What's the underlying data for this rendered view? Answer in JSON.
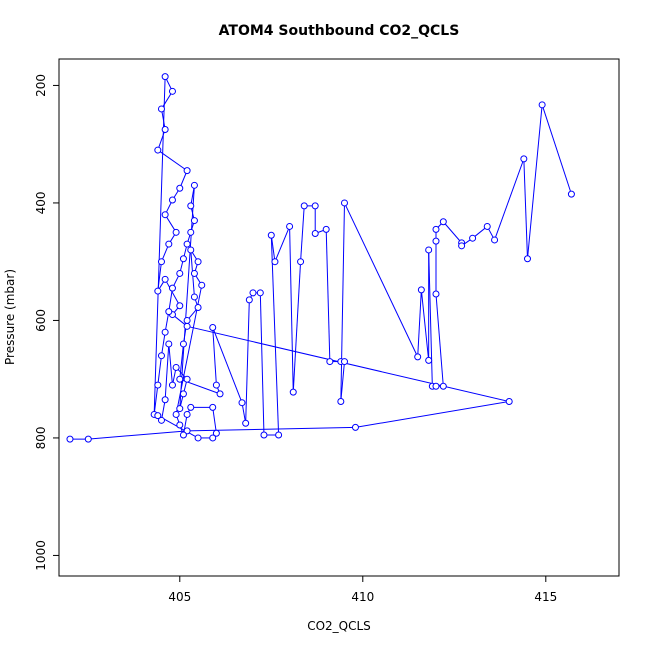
{
  "chart_data": {
    "type": "scatter",
    "title": "ATOM4 Southbound CO2_QCLS",
    "xlabel": "CO2_QCLS",
    "ylabel": "Pressure (mbar)",
    "xlim": [
      401.7,
      417
    ],
    "ylim": [
      1035,
      155
    ],
    "y_reversed": true,
    "x_ticks": [
      405,
      410,
      415
    ],
    "y_ticks": [
      200,
      400,
      600,
      800,
      1000
    ],
    "color": "#0000ff",
    "marker": "open-circle",
    "connected": true,
    "grid": false,
    "legend": "none",
    "series": [
      {
        "points": [
          [
            402.0,
            802
          ],
          [
            402.5,
            802
          ],
          [
            405.2,
            788
          ],
          [
            409.8,
            782
          ],
          [
            414.0,
            738
          ],
          [
            405.2,
            610
          ],
          [
            404.8,
            590
          ],
          [
            405.0,
            575
          ],
          [
            404.6,
            530
          ],
          [
            404.4,
            550
          ],
          [
            404.5,
            500
          ],
          [
            404.7,
            470
          ],
          [
            404.9,
            450
          ],
          [
            404.6,
            420
          ],
          [
            404.8,
            395
          ],
          [
            405.0,
            375
          ],
          [
            405.2,
            345
          ],
          [
            404.4,
            310
          ],
          [
            404.6,
            275
          ],
          [
            404.5,
            240
          ],
          [
            404.8,
            210
          ],
          [
            404.6,
            185
          ],
          [
            404.3,
            760
          ],
          [
            404.4,
            710
          ],
          [
            404.5,
            660
          ],
          [
            404.6,
            620
          ],
          [
            404.7,
            585
          ],
          [
            404.8,
            545
          ],
          [
            405.0,
            520
          ],
          [
            405.1,
            495
          ],
          [
            405.2,
            470
          ],
          [
            405.3,
            450
          ],
          [
            405.4,
            430
          ],
          [
            405.3,
            405
          ],
          [
            405.4,
            370
          ],
          [
            405.0,
            750
          ],
          [
            405.1,
            725
          ],
          [
            405.2,
            700
          ],
          [
            404.9,
            680
          ],
          [
            404.8,
            710
          ],
          [
            404.7,
            640
          ],
          [
            404.6,
            735
          ],
          [
            404.5,
            770
          ],
          [
            404.4,
            762
          ],
          [
            405.5,
            800
          ],
          [
            405.9,
            800
          ],
          [
            406.0,
            792
          ],
          [
            405.9,
            748
          ],
          [
            405.3,
            748
          ],
          [
            405.2,
            760
          ],
          [
            405.1,
            795
          ],
          [
            405.0,
            778
          ],
          [
            404.9,
            760
          ],
          [
            405.6,
            540
          ],
          [
            405.4,
            520
          ],
          [
            405.5,
            500
          ],
          [
            405.3,
            480
          ],
          [
            405.4,
            560
          ],
          [
            405.5,
            578
          ],
          [
            405.2,
            600
          ],
          [
            405.1,
            640
          ],
          [
            405.0,
            700
          ],
          [
            406.1,
            725
          ],
          [
            406.0,
            710
          ],
          [
            405.9,
            612
          ],
          [
            406.7,
            740
          ],
          [
            406.8,
            775
          ],
          [
            406.9,
            565
          ],
          [
            407.0,
            553
          ],
          [
            407.2,
            553
          ],
          [
            407.3,
            795
          ],
          [
            407.7,
            795
          ],
          [
            407.5,
            455
          ],
          [
            407.6,
            500
          ],
          [
            408.0,
            440
          ],
          [
            408.1,
            722
          ],
          [
            408.3,
            500
          ],
          [
            408.4,
            405
          ],
          [
            408.7,
            405
          ],
          [
            408.7,
            452
          ],
          [
            409.0,
            445
          ],
          [
            409.1,
            670
          ],
          [
            409.4,
            670
          ],
          [
            409.5,
            670
          ],
          [
            409.4,
            738
          ],
          [
            409.5,
            400
          ],
          [
            411.5,
            662
          ],
          [
            411.6,
            548
          ],
          [
            411.8,
            668
          ],
          [
            411.8,
            480
          ],
          [
            411.9,
            712
          ],
          [
            412.0,
            712
          ],
          [
            412.2,
            712
          ],
          [
            412.0,
            555
          ],
          [
            412.0,
            465
          ],
          [
            412.0,
            445
          ],
          [
            412.2,
            432
          ],
          [
            412.7,
            468
          ],
          [
            412.7,
            473
          ],
          [
            413.0,
            460
          ],
          [
            413.4,
            440
          ],
          [
            413.6,
            463
          ],
          [
            414.4,
            325
          ],
          [
            414.5,
            495
          ],
          [
            414.9,
            233
          ],
          [
            415.7,
            385
          ]
        ]
      }
    ]
  }
}
